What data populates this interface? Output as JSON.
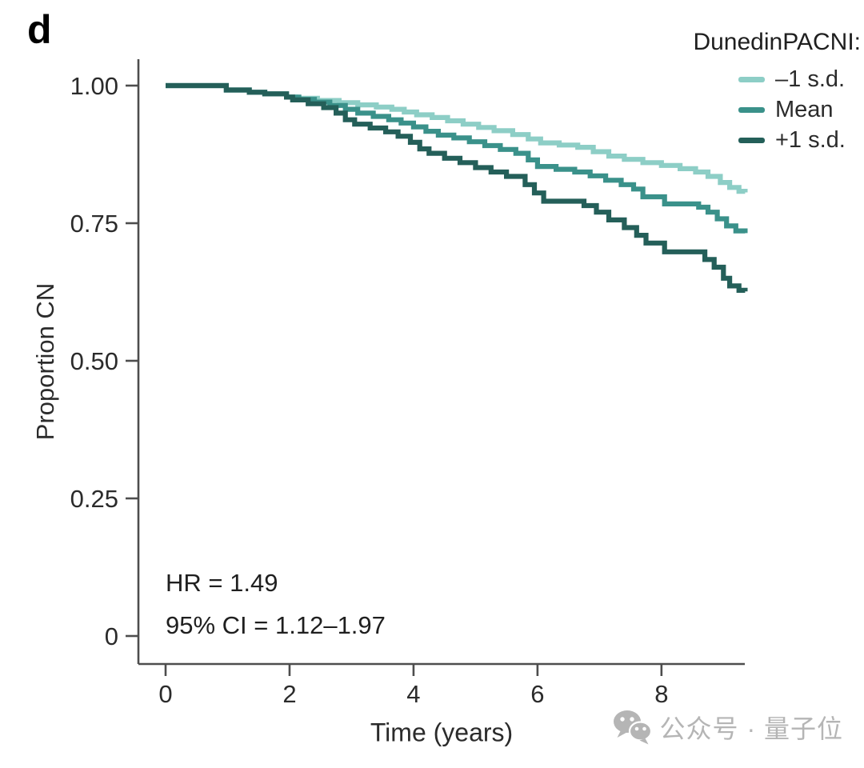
{
  "figure": {
    "panel_label": "d"
  },
  "annotations": {
    "hr": "HR = 1.49",
    "ci": "95% CI = 1.12–1.97"
  },
  "watermark": {
    "icon": "wechat-icon",
    "text": "公众号 · 量子位",
    "color": "#b5b5b5"
  },
  "chart_data": {
    "type": "line",
    "style": "kaplan-meier-step",
    "title": "",
    "xlabel": "Time (years)",
    "ylabel": "Proportion CN",
    "xlim": [
      0,
      9.35
    ],
    "ylim": [
      0,
      1.0
    ],
    "grid": false,
    "x_ticks": [
      {
        "value": 0,
        "label": "0"
      },
      {
        "value": 2,
        "label": "2"
      },
      {
        "value": 4,
        "label": "4"
      },
      {
        "value": 6,
        "label": "6"
      },
      {
        "value": 8,
        "label": "8"
      }
    ],
    "y_ticks": [
      {
        "value": 1.0,
        "label": "1.00"
      },
      {
        "value": 0.75,
        "label": "0.75"
      },
      {
        "value": 0.5,
        "label": "0.50"
      },
      {
        "value": 0.25,
        "label": "0.25"
      },
      {
        "value": 0.0,
        "label": "0"
      }
    ],
    "legend": {
      "title": "DunedinPACNI:",
      "position": "top-right"
    },
    "series": [
      {
        "id": "minus-1-sd",
        "label": "–1 s.d.",
        "color": "#8dcec6",
        "points": [
          [
            0,
            1.0
          ],
          [
            0.98,
            0.992
          ],
          [
            1.35,
            0.988
          ],
          [
            1.6,
            0.985
          ],
          [
            1.95,
            0.979
          ],
          [
            2.1,
            0.977
          ],
          [
            2.45,
            0.973
          ],
          [
            2.8,
            0.969
          ],
          [
            3.1,
            0.965
          ],
          [
            3.4,
            0.961
          ],
          [
            3.65,
            0.957
          ],
          [
            3.85,
            0.952
          ],
          [
            4.05,
            0.947
          ],
          [
            4.3,
            0.942
          ],
          [
            4.55,
            0.936
          ],
          [
            4.8,
            0.93
          ],
          [
            5.05,
            0.924
          ],
          [
            5.3,
            0.918
          ],
          [
            5.6,
            0.911
          ],
          [
            5.85,
            0.903
          ],
          [
            6.05,
            0.896
          ],
          [
            6.35,
            0.892
          ],
          [
            6.65,
            0.888
          ],
          [
            6.9,
            0.88
          ],
          [
            7.15,
            0.872
          ],
          [
            7.4,
            0.866
          ],
          [
            7.7,
            0.86
          ],
          [
            8.0,
            0.855
          ],
          [
            8.3,
            0.849
          ],
          [
            8.55,
            0.843
          ],
          [
            8.75,
            0.835
          ],
          [
            8.95,
            0.824
          ],
          [
            9.1,
            0.815
          ],
          [
            9.25,
            0.808
          ],
          [
            9.35,
            0.806
          ]
        ]
      },
      {
        "id": "mean",
        "label": "Mean",
        "color": "#3a918a",
        "points": [
          [
            0,
            1.0
          ],
          [
            0.98,
            0.992
          ],
          [
            1.35,
            0.988
          ],
          [
            1.6,
            0.985
          ],
          [
            1.95,
            0.979
          ],
          [
            2.15,
            0.975
          ],
          [
            2.4,
            0.97
          ],
          [
            2.65,
            0.964
          ],
          [
            2.9,
            0.957
          ],
          [
            3.1,
            0.95
          ],
          [
            3.35,
            0.944
          ],
          [
            3.6,
            0.938
          ],
          [
            3.8,
            0.932
          ],
          [
            4.0,
            0.925
          ],
          [
            4.2,
            0.917
          ],
          [
            4.4,
            0.91
          ],
          [
            4.65,
            0.905
          ],
          [
            4.9,
            0.898
          ],
          [
            5.15,
            0.891
          ],
          [
            5.4,
            0.884
          ],
          [
            5.65,
            0.877
          ],
          [
            5.85,
            0.865
          ],
          [
            6.0,
            0.853
          ],
          [
            6.3,
            0.848
          ],
          [
            6.6,
            0.843
          ],
          [
            6.85,
            0.836
          ],
          [
            7.1,
            0.828
          ],
          [
            7.35,
            0.82
          ],
          [
            7.55,
            0.812
          ],
          [
            7.7,
            0.798
          ],
          [
            8.05,
            0.785
          ],
          [
            8.6,
            0.779
          ],
          [
            8.75,
            0.77
          ],
          [
            8.9,
            0.758
          ],
          [
            9.05,
            0.745
          ],
          [
            9.2,
            0.736
          ],
          [
            9.35,
            0.732
          ]
        ]
      },
      {
        "id": "plus-1-sd",
        "label": "+1 s.d.",
        "color": "#245f59",
        "points": [
          [
            0,
            1.0
          ],
          [
            0.98,
            0.992
          ],
          [
            1.35,
            0.988
          ],
          [
            1.6,
            0.985
          ],
          [
            1.95,
            0.979
          ],
          [
            2.05,
            0.974
          ],
          [
            2.3,
            0.967
          ],
          [
            2.55,
            0.96
          ],
          [
            2.75,
            0.95
          ],
          [
            2.9,
            0.938
          ],
          [
            3.05,
            0.93
          ],
          [
            3.3,
            0.923
          ],
          [
            3.55,
            0.916
          ],
          [
            3.75,
            0.908
          ],
          [
            3.95,
            0.897
          ],
          [
            4.1,
            0.885
          ],
          [
            4.25,
            0.877
          ],
          [
            4.5,
            0.868
          ],
          [
            4.75,
            0.86
          ],
          [
            5.0,
            0.851
          ],
          [
            5.25,
            0.843
          ],
          [
            5.5,
            0.835
          ],
          [
            5.8,
            0.82
          ],
          [
            5.95,
            0.805
          ],
          [
            6.1,
            0.79
          ],
          [
            6.75,
            0.782
          ],
          [
            6.95,
            0.77
          ],
          [
            7.15,
            0.756
          ],
          [
            7.4,
            0.742
          ],
          [
            7.6,
            0.728
          ],
          [
            7.75,
            0.714
          ],
          [
            8.05,
            0.698
          ],
          [
            8.7,
            0.684
          ],
          [
            8.85,
            0.67
          ],
          [
            9.0,
            0.65
          ],
          [
            9.1,
            0.636
          ],
          [
            9.25,
            0.628
          ],
          [
            9.35,
            0.626
          ]
        ]
      }
    ]
  }
}
